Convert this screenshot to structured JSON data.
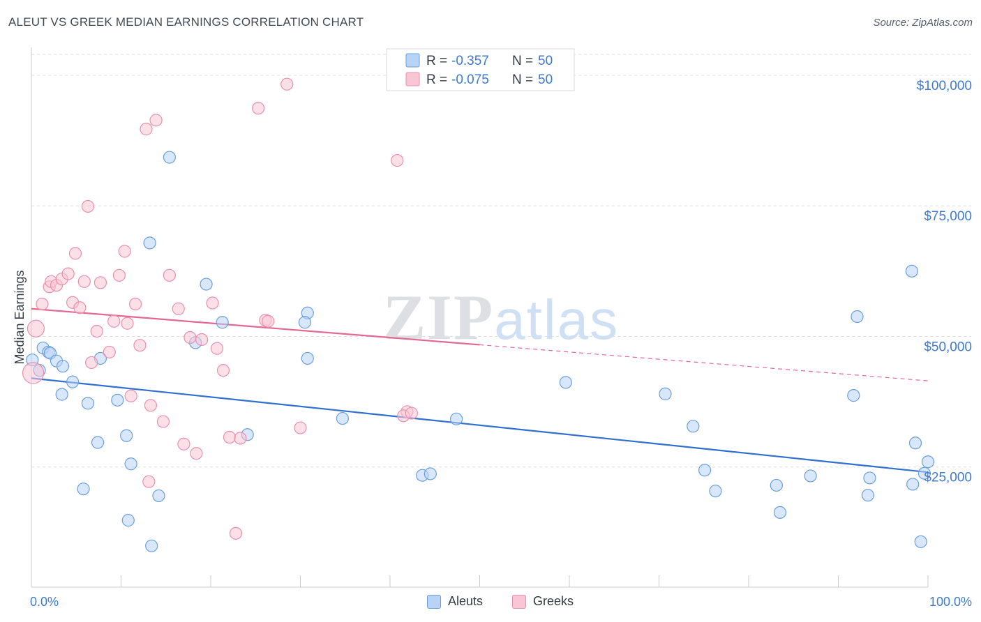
{
  "header": {
    "title": "ALEUT VS GREEK MEDIAN EARNINGS CORRELATION CHART",
    "source": "Source: ZipAtlas.com"
  },
  "watermark": "ZIPatlas",
  "colors": {
    "aleuts_fill": "#b8d3f5",
    "aleuts_stroke": "#6b9fdc",
    "aleuts_line": "#2f6fd0",
    "greeks_fill": "#f9c6d6",
    "greeks_stroke": "#ea8fae",
    "greeks_line": "#e4678f",
    "axis_label": "#3f7ad1",
    "grid": "#dddddd"
  },
  "legend_top": [
    {
      "r_label": "R =",
      "r_value": "-0.357",
      "n_label": "N =",
      "n_value": "50"
    },
    {
      "r_label": "R =",
      "r_value": "-0.075",
      "n_label": "N =",
      "n_value": "50"
    }
  ],
  "legend_bottom": [
    "Aleuts",
    "Greeks"
  ],
  "chart_data": {
    "type": "scatter",
    "title": "ALEUT VS GREEK MEDIAN EARNINGS CORRELATION CHART",
    "xlabel": "",
    "ylabel": "Median Earnings",
    "xlim": [
      0,
      100
    ],
    "ylim": [
      2000,
      104000
    ],
    "x_tick_labels": [
      "0.0%",
      "100.0%"
    ],
    "y_ticks": [
      25000,
      50000,
      75000,
      100000
    ],
    "y_tick_labels": [
      "$25,000",
      "$50,000",
      "$75,000",
      "$100,000"
    ],
    "grid": true,
    "legend_position": "top-center",
    "series": [
      {
        "name": "Aleuts",
        "r": -0.357,
        "n": 50,
        "trend": {
          "x": [
            0,
            100
          ],
          "y": [
            42000,
            24000
          ],
          "dashed_from": null
        },
        "points": [
          [
            0.1,
            45500
          ],
          [
            0.9,
            43500
          ],
          [
            1.3,
            47800
          ],
          [
            1.9,
            47000
          ],
          [
            2.1,
            46800
          ],
          [
            2.8,
            45300
          ],
          [
            3.5,
            44300
          ],
          [
            3.4,
            38900
          ],
          [
            4.6,
            41300
          ],
          [
            6.3,
            37200
          ],
          [
            5.8,
            20800
          ],
          [
            7.4,
            29700
          ],
          [
            7.7,
            45800
          ],
          [
            9.6,
            37800
          ],
          [
            10.6,
            31000
          ],
          [
            11.1,
            25600
          ],
          [
            10.8,
            14800
          ],
          [
            13.4,
            9900
          ],
          [
            14.2,
            19500
          ],
          [
            13.2,
            67900
          ],
          [
            15.4,
            84300
          ],
          [
            18.3,
            48800
          ],
          [
            19.5,
            60000
          ],
          [
            21.3,
            52700
          ],
          [
            24.1,
            31200
          ],
          [
            30.8,
            54500
          ],
          [
            30.5,
            52700
          ],
          [
            30.8,
            45800
          ],
          [
            34.7,
            34300
          ],
          [
            43.6,
            23400
          ],
          [
            44.5,
            23700
          ],
          [
            47.4,
            34200
          ],
          [
            59.6,
            41200
          ],
          [
            70.7,
            39000
          ],
          [
            73.8,
            32800
          ],
          [
            75.1,
            24400
          ],
          [
            76.3,
            20400
          ],
          [
            83.1,
            21500
          ],
          [
            83.5,
            16300
          ],
          [
            86.9,
            23300
          ],
          [
            91.7,
            38700
          ],
          [
            92.1,
            53800
          ],
          [
            93.3,
            19600
          ],
          [
            93.5,
            22900
          ],
          [
            98.2,
            62500
          ],
          [
            98.3,
            21700
          ],
          [
            98.6,
            29600
          ],
          [
            99.2,
            10700
          ],
          [
            99.6,
            23800
          ],
          [
            100.0,
            26000
          ]
        ]
      },
      {
        "name": "Greeks",
        "r": -0.075,
        "n": 50,
        "trend": {
          "x": [
            0,
            100
          ],
          "y": [
            55300,
            41500
          ],
          "dashed_from": 50
        },
        "points": [
          [
            0.2,
            43000
          ],
          [
            0.5,
            51500
          ],
          [
            1.2,
            56200
          ],
          [
            2.0,
            59500
          ],
          [
            2.2,
            60500
          ],
          [
            2.8,
            59800
          ],
          [
            3.4,
            61000
          ],
          [
            4.1,
            62000
          ],
          [
            4.6,
            56500
          ],
          [
            4.9,
            65900
          ],
          [
            5.4,
            55500
          ],
          [
            5.9,
            60500
          ],
          [
            6.3,
            74900
          ],
          [
            6.7,
            45000
          ],
          [
            7.3,
            51000
          ],
          [
            7.7,
            60300
          ],
          [
            8.7,
            47000
          ],
          [
            9.2,
            52900
          ],
          [
            9.8,
            61700
          ],
          [
            10.4,
            66300
          ],
          [
            10.7,
            52500
          ],
          [
            11.1,
            38600
          ],
          [
            11.6,
            56200
          ],
          [
            12.1,
            48300
          ],
          [
            12.8,
            89700
          ],
          [
            13.1,
            22200
          ],
          [
            13.3,
            36800
          ],
          [
            13.9,
            91400
          ],
          [
            14.7,
            33700
          ],
          [
            15.4,
            61700
          ],
          [
            16.4,
            55300
          ],
          [
            17.0,
            29400
          ],
          [
            17.7,
            49800
          ],
          [
            18.4,
            27600
          ],
          [
            19.0,
            49400
          ],
          [
            20.2,
            56400
          ],
          [
            20.7,
            47700
          ],
          [
            21.4,
            43500
          ],
          [
            22.1,
            30700
          ],
          [
            22.8,
            12300
          ],
          [
            23.3,
            30500
          ],
          [
            25.3,
            93700
          ],
          [
            26.1,
            53100
          ],
          [
            26.4,
            52900
          ],
          [
            28.5,
            98300
          ],
          [
            30.0,
            32500
          ],
          [
            40.8,
            83700
          ],
          [
            41.9,
            35600
          ],
          [
            41.5,
            34800
          ],
          [
            42.4,
            35300
          ]
        ]
      }
    ]
  }
}
